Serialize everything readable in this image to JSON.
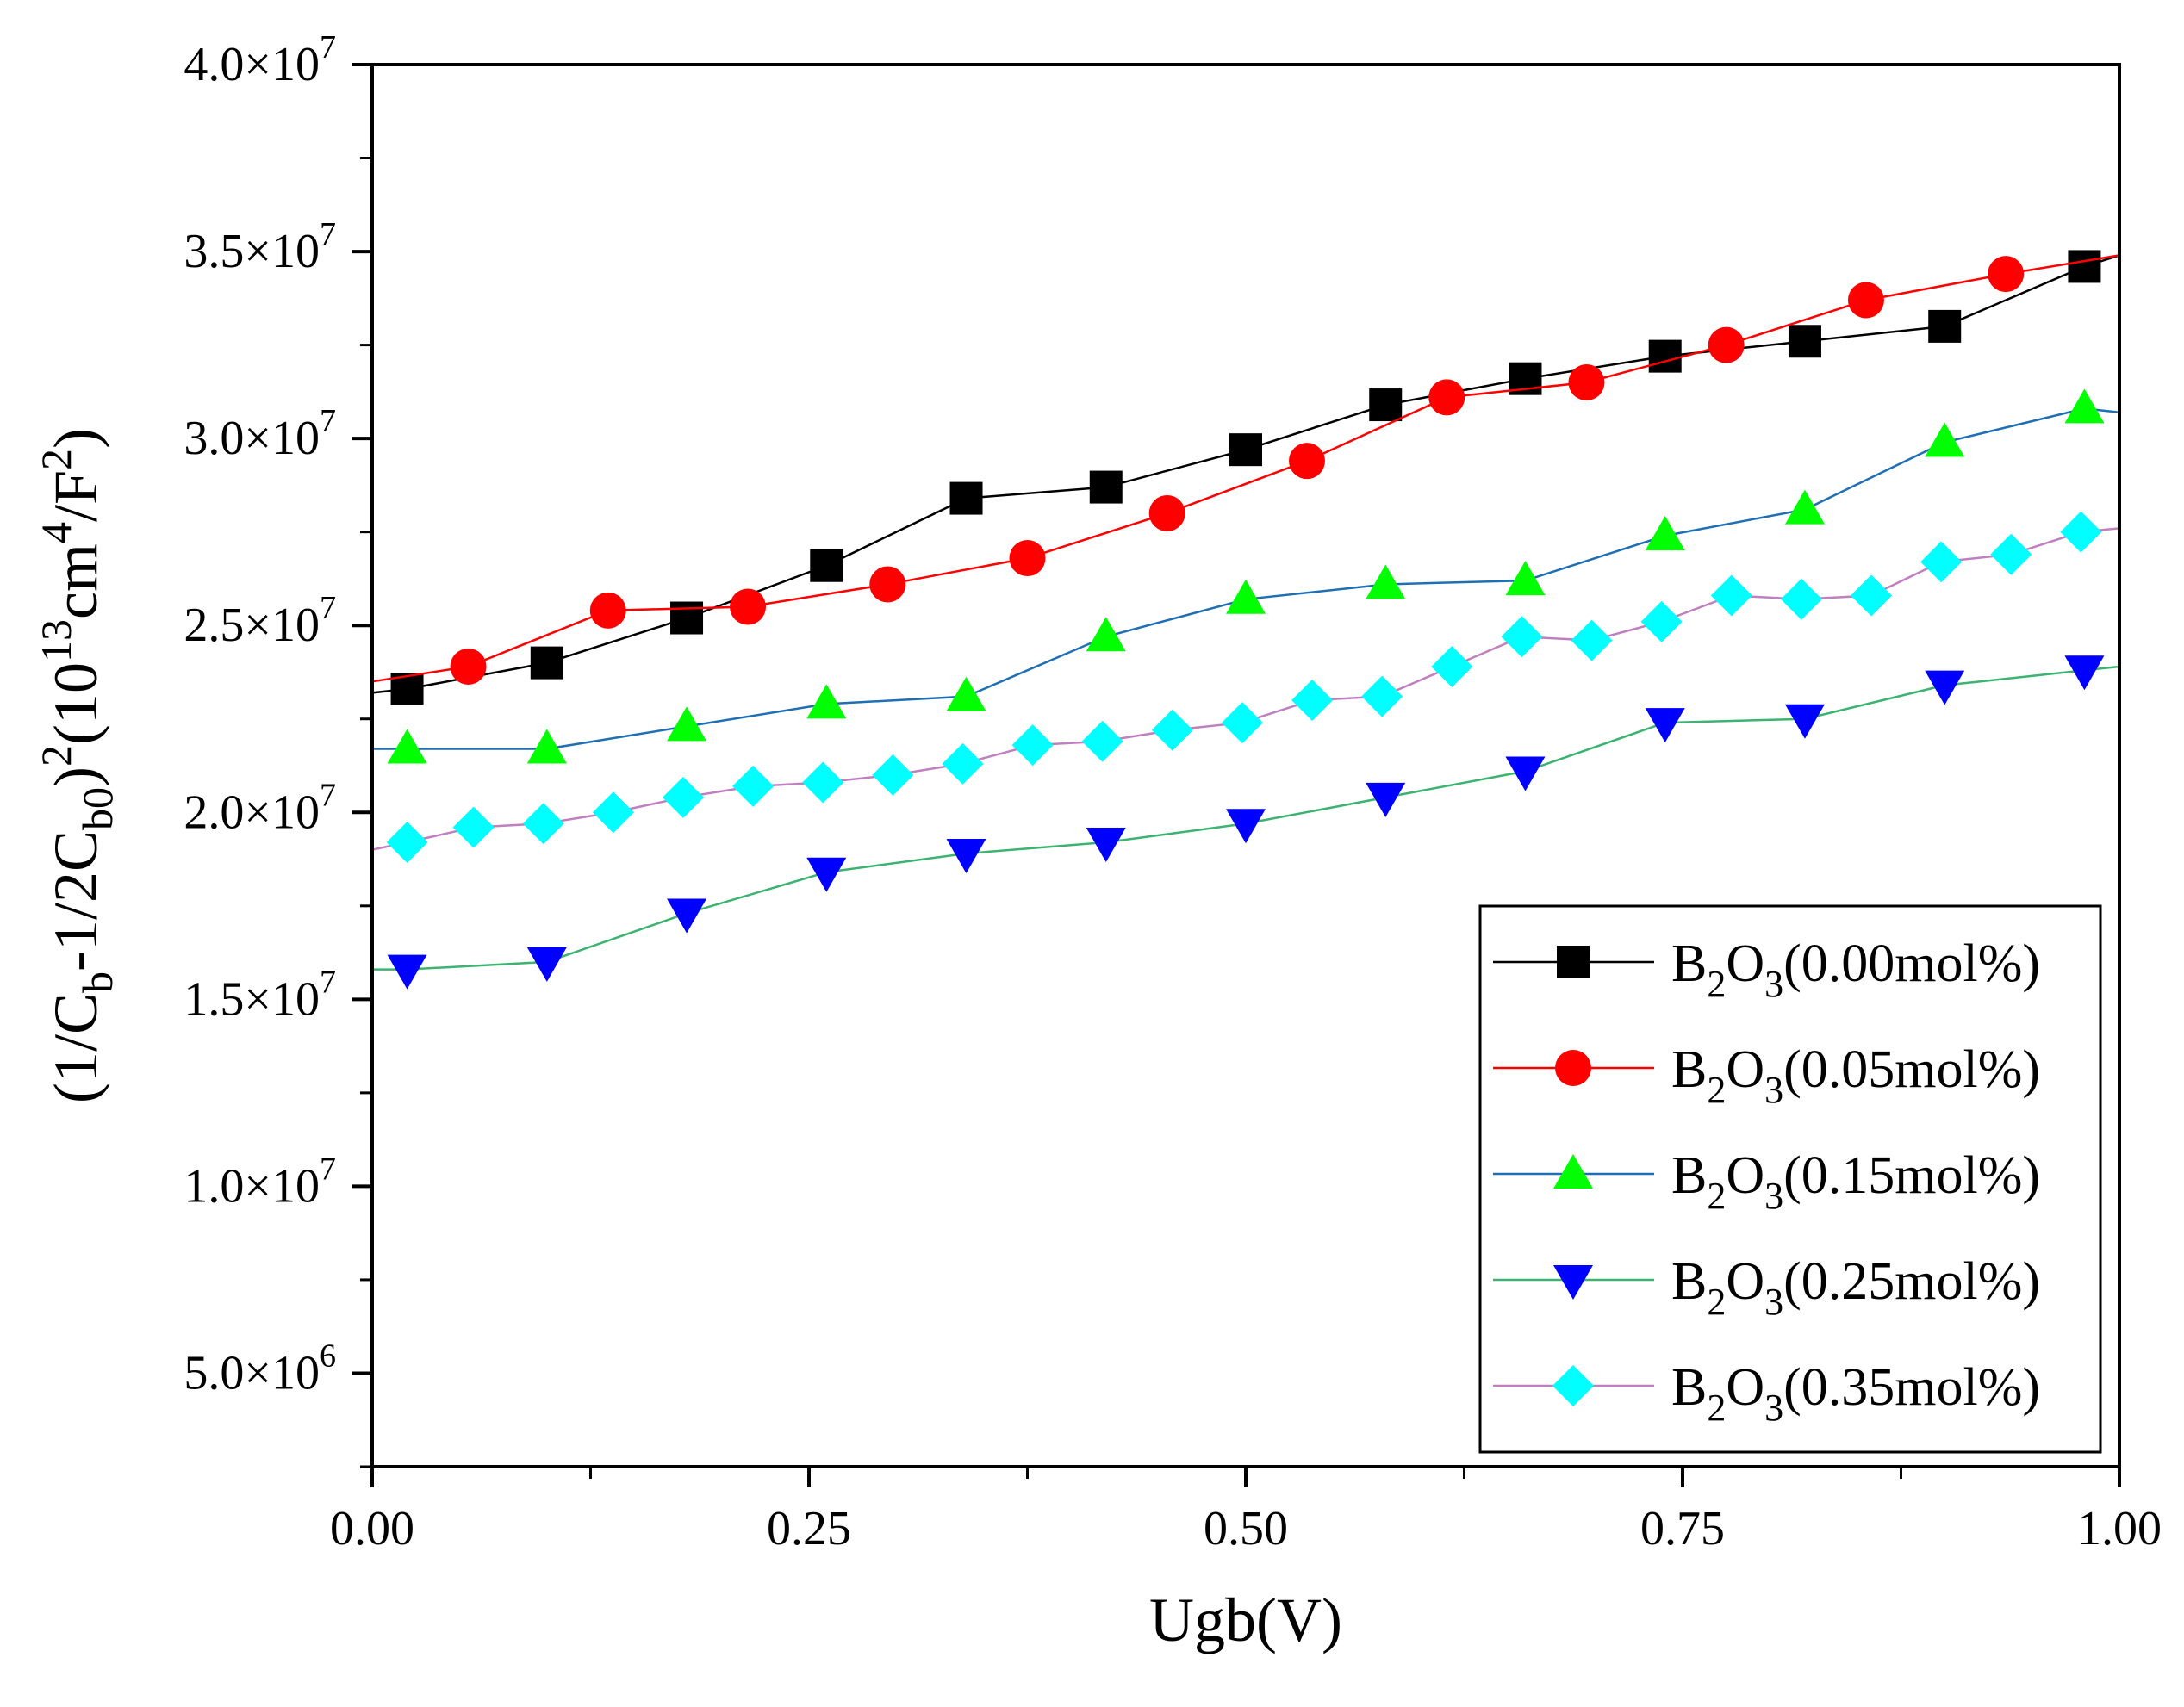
{
  "chart_data": {
    "type": "line",
    "xlabel": "Ugb(V)",
    "ylabel_parts": [
      "(1/C",
      "b",
      "-1/2C",
      "b0",
      ")",
      "2",
      "(10",
      "13",
      "cm",
      "4",
      "/F",
      "2",
      ")"
    ],
    "xlim": [
      0.0,
      1.0
    ],
    "ylim": [
      2500000,
      40000000
    ],
    "x_ticks": [
      0.0,
      0.25,
      0.5,
      0.75,
      1.0
    ],
    "x_tick_labels": [
      "0.00",
      "0.25",
      "0.50",
      "0.75",
      "1.00"
    ],
    "y_ticks": [
      5000000,
      10000000,
      15000000,
      20000000,
      25000000,
      30000000,
      35000000,
      40000000
    ],
    "y_tick_mantissas": [
      "5.0×10",
      "1.0×10",
      "1.5×10",
      "2.0×10",
      "2.5×10",
      "3.0×10",
      "3.5×10",
      "4.0×10"
    ],
    "y_tick_exponents": [
      "6",
      "7",
      "7",
      "7",
      "7",
      "7",
      "7",
      "7"
    ],
    "legend_position": "bottom-right",
    "series": [
      {
        "name": "B2O3(0.00mol%)",
        "legend_parts": [
          "B",
          "2",
          "O",
          "3",
          "(0.00mol%)"
        ],
        "marker": "square",
        "marker_color": "#000000",
        "line_color": "#000000",
        "x": [
          0.02,
          0.1,
          0.18,
          0.26,
          0.34,
          0.42,
          0.5,
          0.58,
          0.66,
          0.74,
          0.82,
          0.9,
          0.98
        ],
        "y": [
          23300000,
          24000000,
          25200000,
          26600000,
          28400000,
          28700000,
          29700000,
          30900000,
          31600000,
          32200000,
          32600000,
          33000000,
          34600000
        ],
        "line_start": [
          0.0,
          23200000
        ],
        "line_end": [
          1.0,
          34900000
        ]
      },
      {
        "name": "B2O3(0.05mol%)",
        "legend_parts": [
          "B",
          "2",
          "O",
          "3",
          "(0.05mol%)"
        ],
        "marker": "circle",
        "marker_color": "#ff0000",
        "line_color": "#ff0000",
        "x": [
          0.055,
          0.135,
          0.215,
          0.295,
          0.375,
          0.455,
          0.535,
          0.615,
          0.695,
          0.775,
          0.855,
          0.935
        ],
        "y": [
          23900000,
          25400000,
          25500000,
          26100000,
          26800000,
          28000000,
          29400000,
          31100000,
          31500000,
          32500000,
          33700000,
          34400000
        ],
        "line_start": [
          0.0,
          23500000
        ],
        "line_end": [
          1.0,
          34900000
        ]
      },
      {
        "name": "B2O3(0.15mol%)",
        "legend_parts": [
          "B",
          "2",
          "O",
          "3",
          "(0.15mol%)"
        ],
        "marker": "triangle-up",
        "marker_color": "#00ff00",
        "line_color": "#1f6fb4",
        "x": [
          0.02,
          0.1,
          0.18,
          0.26,
          0.34,
          0.42,
          0.5,
          0.58,
          0.66,
          0.74,
          0.82,
          0.9,
          0.98
        ],
        "y": [
          21700000,
          21700000,
          22300000,
          22900000,
          23100000,
          24700000,
          25700000,
          26100000,
          26200000,
          27400000,
          28100000,
          29900000,
          30800000
        ],
        "line_start": [
          0.0,
          21700000
        ],
        "line_end": [
          1.0,
          30700000
        ]
      },
      {
        "name": "B2O3(0.25mol%)",
        "legend_parts": [
          "B",
          "2",
          "O",
          "3",
          "(0.25mol%)"
        ],
        "marker": "triangle-down",
        "marker_color": "#0000ff",
        "line_color": "#3cb371",
        "x": [
          0.02,
          0.1,
          0.18,
          0.26,
          0.34,
          0.42,
          0.5,
          0.58,
          0.66,
          0.74,
          0.82,
          0.9,
          0.98
        ],
        "y": [
          15800000,
          16000000,
          17300000,
          18400000,
          18900000,
          19200000,
          19700000,
          20400000,
          21100000,
          22400000,
          22500000,
          23400000,
          23800000
        ],
        "line_start": [
          0.0,
          15800000
        ],
        "line_end": [
          1.0,
          23900000
        ]
      },
      {
        "name": "B2O3(0.35mol%)",
        "legend_parts": [
          "B",
          "2",
          "O",
          "3",
          "(0.35mol%)"
        ],
        "marker": "diamond",
        "marker_color": "#00ffff",
        "line_color": "#c080c0",
        "x": [
          0.02,
          0.058,
          0.098,
          0.138,
          0.178,
          0.218,
          0.258,
          0.298,
          0.338,
          0.378,
          0.418,
          0.458,
          0.498,
          0.538,
          0.578,
          0.618,
          0.658,
          0.698,
          0.738,
          0.778,
          0.818,
          0.858,
          0.898,
          0.938,
          0.978
        ],
        "y": [
          19200000,
          19600000,
          19700000,
          20000000,
          20400000,
          20700000,
          20800000,
          21000000,
          21300000,
          21800000,
          21900000,
          22200000,
          22400000,
          23000000,
          23100000,
          23900000,
          24700000,
          24600000,
          25100000,
          25800000,
          25700000,
          25800000,
          26700000,
          26900000,
          27500000
        ],
        "line_start": [
          0.0,
          19000000
        ],
        "line_end": [
          1.0,
          27600000
        ]
      }
    ]
  }
}
